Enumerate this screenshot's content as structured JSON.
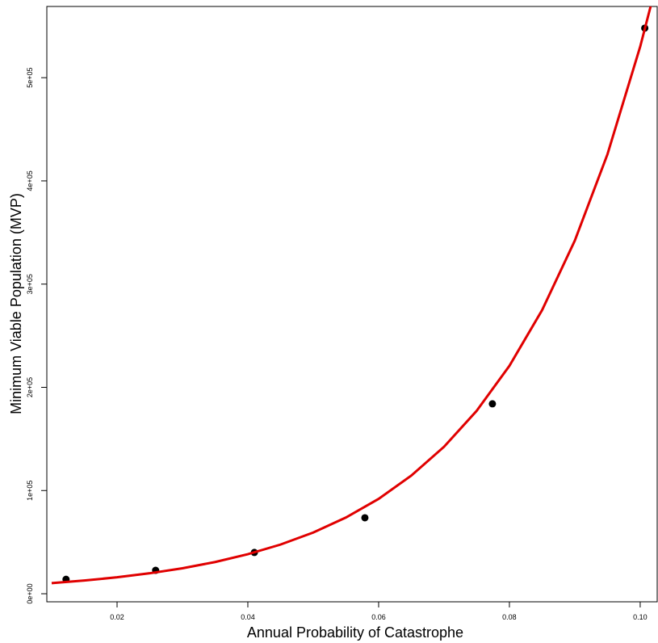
{
  "chart_data": {
    "type": "scatter",
    "x_label": "Annual Probability of Catastrophe",
    "y_label": "Minimum Viable Population (MVP)",
    "series": [
      {
        "type": "scatter",
        "color": "#000000",
        "x": [
          0.0122,
          0.0259,
          0.041,
          0.0579,
          0.0774,
          0.1007
        ],
        "values": [
          14000,
          22700,
          40000,
          73600,
          184000,
          548000
        ]
      },
      {
        "type": "line",
        "color": "#e00000",
        "x": [
          0.01,
          0.015,
          0.02,
          0.025,
          0.03,
          0.035,
          0.04,
          0.045,
          0.05,
          0.055,
          0.06,
          0.065,
          0.07,
          0.075,
          0.08,
          0.085,
          0.09,
          0.095,
          0.1,
          0.102
        ],
        "values": [
          10290,
          12810,
          15940,
          19850,
          24710,
          30760,
          38290,
          47660,
          59330,
          73850,
          91940,
          114500,
          142400,
          177300,
          220800,
          274800,
          342100,
          425900,
          530100,
          579000
        ]
      }
    ],
    "xlim": [
      0.00926,
      0.1026
    ],
    "ylim": [
      -7800,
      569000
    ],
    "xticks": [
      0.02,
      0.04,
      0.06,
      0.08,
      {
        "value": 0.1,
        "label": "0.10"
      }
    ],
    "yticks": [
      {
        "value": 0,
        "label": "0e+00"
      },
      {
        "value": 100000,
        "label": "1e+05"
      },
      {
        "value": 200000,
        "label": "2e+05"
      },
      {
        "value": 300000,
        "label": "3e+05"
      },
      {
        "value": 400000,
        "label": "4e+05"
      },
      {
        "value": 500000,
        "label": "5e+05"
      }
    ]
  }
}
